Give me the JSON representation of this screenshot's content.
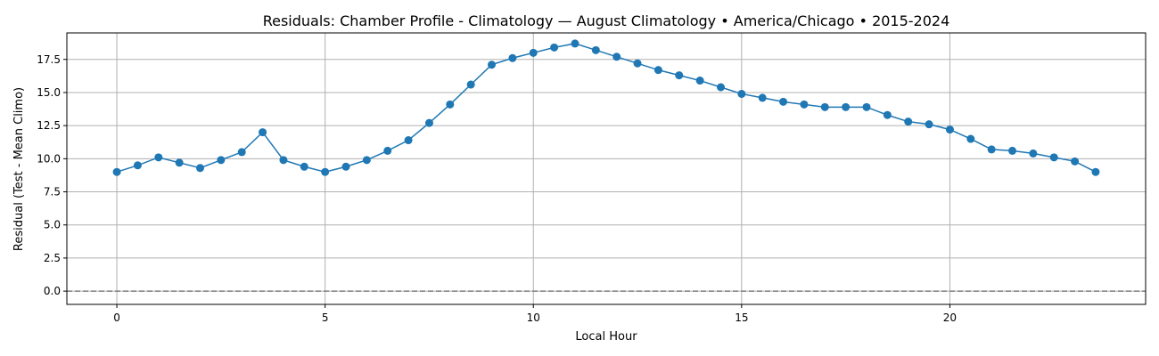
{
  "chart_data": {
    "type": "line",
    "title": "Residuals: Chamber Profile - Climatology — August Climatology • America/Chicago • 2015-2024",
    "xlabel": "Local Hour",
    "ylabel": "Residual (Test - Mean Climo)",
    "xlim": [
      -1.2,
      24.7
    ],
    "ylim": [
      -1.0,
      19.5
    ],
    "xticks": [
      0,
      5,
      10,
      15,
      20
    ],
    "xtick_labels": [
      "0",
      "5",
      "10",
      "15",
      "20"
    ],
    "yticks": [
      0,
      2.5,
      5,
      7.5,
      10,
      12.5,
      15,
      17.5
    ],
    "ytick_labels": [
      "0.0",
      "2.5",
      "5.0",
      "7.5",
      "10.0",
      "12.5",
      "15.0",
      "17.5"
    ],
    "grid": true,
    "reference_line": {
      "y": 0,
      "style": "dashed",
      "color": "#808080"
    },
    "series": [
      {
        "color": "#1f77b4",
        "marker": "circle",
        "x": [
          0,
          0.5,
          1,
          1.5,
          2,
          2.5,
          3,
          3.5,
          4,
          4.5,
          5,
          5.5,
          6,
          6.5,
          7,
          7.5,
          8,
          8.5,
          9,
          9.5,
          10,
          10.5,
          11,
          11.5,
          12,
          12.5,
          13,
          13.5,
          14,
          14.5,
          15,
          15.5,
          16,
          16.5,
          17,
          17.5,
          18,
          18.5,
          19,
          19.5,
          20,
          20.5,
          21,
          21.5,
          22,
          22.5,
          23,
          23.5
        ],
        "values": [
          9.0,
          9.5,
          10.1,
          9.7,
          9.3,
          9.9,
          10.5,
          12.0,
          9.9,
          9.4,
          9.0,
          9.4,
          9.9,
          10.6,
          11.4,
          12.7,
          14.1,
          15.6,
          17.1,
          17.6,
          18.0,
          18.4,
          18.7,
          18.2,
          17.7,
          17.2,
          16.7,
          16.3,
          15.9,
          15.4,
          14.9,
          14.6,
          14.3,
          14.1,
          13.9,
          13.9,
          13.9,
          13.3,
          12.8,
          12.6,
          12.2,
          11.5,
          10.7,
          10.6,
          10.4,
          10.1,
          9.8,
          9.0
        ]
      }
    ]
  }
}
